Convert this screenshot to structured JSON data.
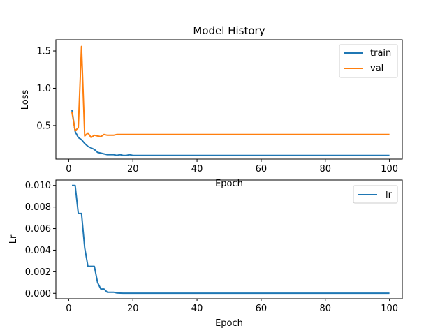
{
  "chart_data": [
    {
      "type": "line",
      "title": "Model History",
      "xlabel": "Epoch",
      "ylabel": "Loss",
      "xlim": [
        -4,
        104
      ],
      "ylim": [
        0.05,
        1.65
      ],
      "xticks": [
        0,
        20,
        40,
        60,
        80,
        100
      ],
      "xtick_labels": [
        "0",
        "20",
        "40",
        "60",
        "80",
        "100"
      ],
      "yticks": [
        0.5,
        1.0,
        1.5
      ],
      "ytick_labels": [
        "0.5",
        "1.0",
        "1.5"
      ],
      "grid": false,
      "legend": "top-right",
      "x": [
        1,
        2,
        3,
        4,
        5,
        6,
        7,
        8,
        9,
        10,
        11,
        12,
        13,
        14,
        15,
        16,
        17,
        18,
        19,
        20,
        22,
        24,
        26,
        28,
        30,
        35,
        40,
        45,
        50,
        55,
        60,
        65,
        70,
        75,
        80,
        85,
        90,
        95,
        100
      ],
      "series": [
        {
          "name": "train",
          "color": "#1f77b4",
          "values": [
            0.71,
            0.42,
            0.34,
            0.31,
            0.26,
            0.22,
            0.2,
            0.18,
            0.14,
            0.13,
            0.12,
            0.11,
            0.11,
            0.11,
            0.1,
            0.11,
            0.1,
            0.1,
            0.11,
            0.1,
            0.1,
            0.1,
            0.1,
            0.1,
            0.1,
            0.1,
            0.1,
            0.1,
            0.1,
            0.1,
            0.1,
            0.1,
            0.1,
            0.1,
            0.1,
            0.1,
            0.1,
            0.1,
            0.1
          ]
        },
        {
          "name": "val",
          "color": "#ff7f0e",
          "values": [
            0.68,
            0.43,
            0.47,
            1.56,
            0.36,
            0.4,
            0.34,
            0.37,
            0.36,
            0.35,
            0.38,
            0.37,
            0.37,
            0.37,
            0.38,
            0.38,
            0.38,
            0.38,
            0.38,
            0.38,
            0.38,
            0.38,
            0.38,
            0.38,
            0.38,
            0.38,
            0.38,
            0.38,
            0.38,
            0.38,
            0.38,
            0.38,
            0.38,
            0.38,
            0.38,
            0.38,
            0.38,
            0.38,
            0.38
          ]
        }
      ]
    },
    {
      "type": "line",
      "title": "",
      "xlabel": "Epoch",
      "ylabel": "Lr",
      "xlim": [
        -4,
        104
      ],
      "ylim": [
        -0.0005,
        0.0105
      ],
      "xticks": [
        0,
        20,
        40,
        60,
        80,
        100
      ],
      "xtick_labels": [
        "0",
        "20",
        "40",
        "60",
        "80",
        "100"
      ],
      "yticks": [
        0,
        0.002,
        0.004,
        0.006,
        0.008,
        0.01
      ],
      "ytick_labels": [
        "0.000",
        "0.002",
        "0.004",
        "0.006",
        "0.008",
        "0.010"
      ],
      "grid": false,
      "legend": "top-right",
      "x": [
        1,
        2,
        3,
        4,
        5,
        6,
        7,
        8,
        9,
        10,
        11,
        12,
        13,
        14,
        15,
        16,
        17,
        18,
        19,
        20,
        30,
        40,
        50,
        60,
        70,
        80,
        90,
        100
      ],
      "series": [
        {
          "name": "lr",
          "color": "#1f77b4",
          "values": [
            0.01,
            0.01,
            0.0074,
            0.0074,
            0.0042,
            0.0025,
            0.0025,
            0.0025,
            0.001,
            0.0004,
            0.0004,
            0.0001,
            0.0001,
            0.0001,
            3e-05,
            2e-05,
            1e-05,
            1e-05,
            1e-05,
            1e-05,
            1e-05,
            1e-05,
            1e-05,
            1e-05,
            1e-05,
            1e-05,
            1e-05,
            1e-05
          ]
        }
      ]
    }
  ]
}
